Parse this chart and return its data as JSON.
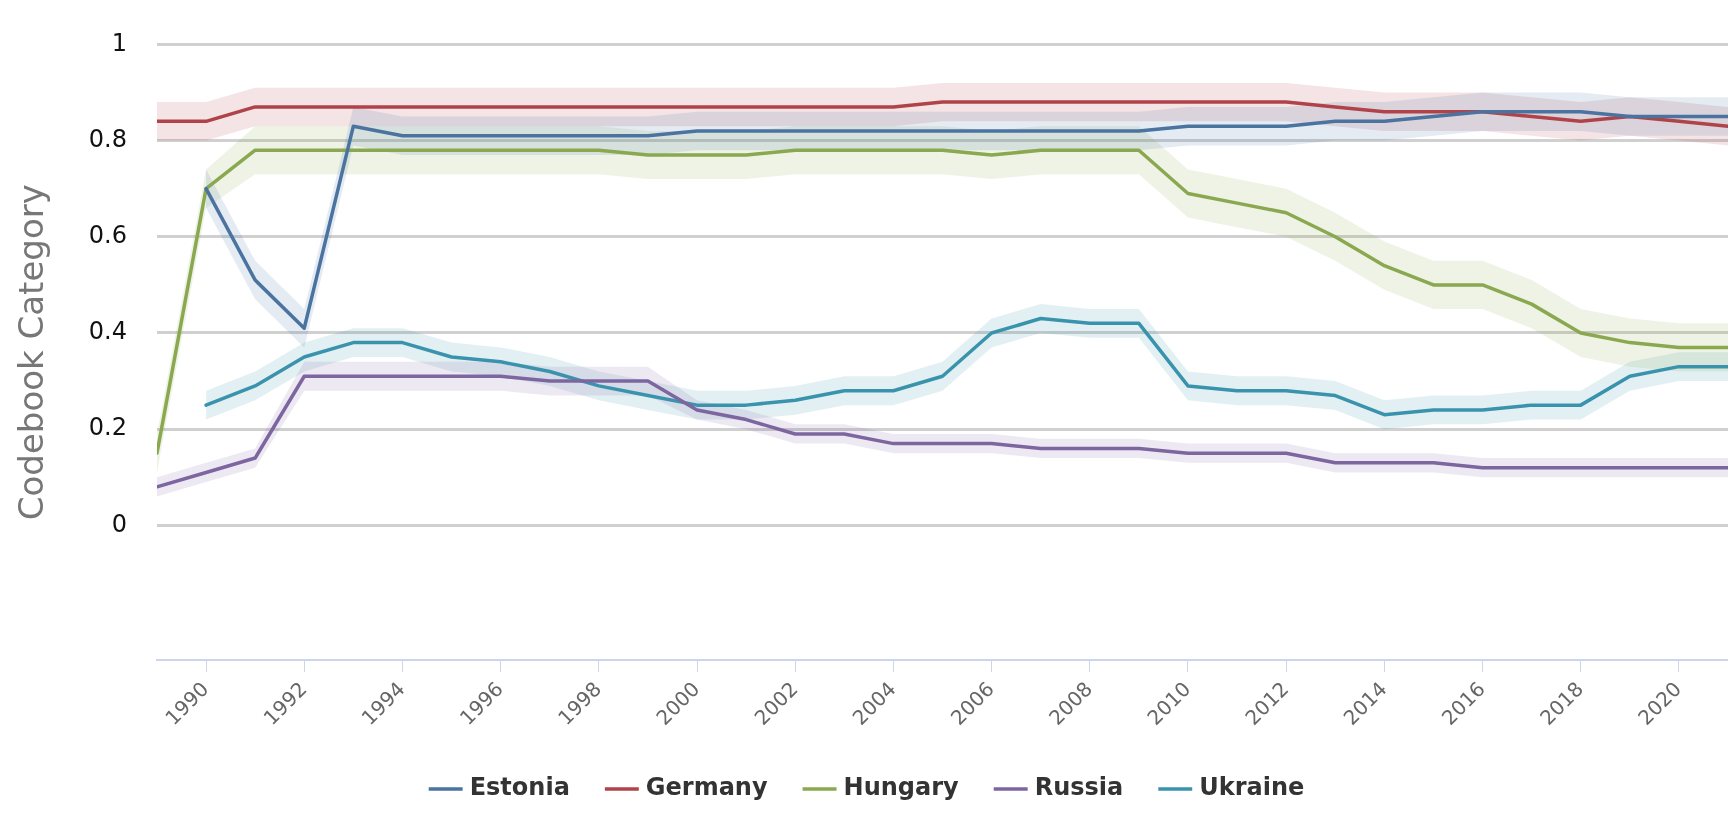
{
  "chart_data": {
    "type": "line",
    "ylabel": "Codebook Category",
    "x": [
      1989,
      1990,
      1991,
      1992,
      1993,
      1994,
      1995,
      1996,
      1997,
      1998,
      1999,
      2000,
      2001,
      2002,
      2003,
      2004,
      2005,
      2006,
      2007,
      2008,
      2009,
      2010,
      2011,
      2012,
      2013,
      2014,
      2015,
      2016,
      2017,
      2018,
      2019,
      2020,
      2021
    ],
    "xlim": [
      1989,
      2021
    ],
    "xticks": [
      1990,
      1992,
      1994,
      1996,
      1998,
      2000,
      2002,
      2004,
      2006,
      2008,
      2010,
      2012,
      2014,
      2016,
      2018,
      2020
    ],
    "ylim": [
      -0.28,
      1
    ],
    "yticks": [
      0,
      0.2,
      0.4,
      0.6,
      0.8,
      1
    ],
    "grid": "y",
    "legend": "bottom",
    "marker": "none",
    "line_style": "solid",
    "series": [
      {
        "name": "Estonia",
        "color": "#4a73a0",
        "values": [
          null,
          0.7,
          0.51,
          0.41,
          0.83,
          0.81,
          0.81,
          0.81,
          0.81,
          0.81,
          0.81,
          0.82,
          0.82,
          0.82,
          0.82,
          0.82,
          0.82,
          0.82,
          0.82,
          0.82,
          0.82,
          0.83,
          0.83,
          0.83,
          0.84,
          0.84,
          0.85,
          0.86,
          0.86,
          0.86,
          0.85,
          0.85,
          0.85
        ],
        "lower": [
          null,
          0.66,
          0.47,
          0.37,
          0.79,
          0.77,
          0.77,
          0.77,
          0.77,
          0.77,
          0.77,
          0.78,
          0.78,
          0.78,
          0.78,
          0.78,
          0.78,
          0.78,
          0.78,
          0.78,
          0.78,
          0.79,
          0.79,
          0.79,
          0.8,
          0.8,
          0.81,
          0.82,
          0.82,
          0.82,
          0.81,
          0.81,
          0.81
        ],
        "upper": [
          null,
          0.74,
          0.55,
          0.45,
          0.87,
          0.85,
          0.85,
          0.85,
          0.85,
          0.85,
          0.85,
          0.86,
          0.86,
          0.86,
          0.86,
          0.86,
          0.86,
          0.86,
          0.86,
          0.86,
          0.86,
          0.87,
          0.87,
          0.87,
          0.88,
          0.88,
          0.89,
          0.9,
          0.9,
          0.9,
          0.89,
          0.89,
          0.89
        ]
      },
      {
        "name": "Germany",
        "color": "#b0434a",
        "values": [
          0.84,
          0.84,
          0.87,
          0.87,
          0.87,
          0.87,
          0.87,
          0.87,
          0.87,
          0.87,
          0.87,
          0.87,
          0.87,
          0.87,
          0.87,
          0.87,
          0.88,
          0.88,
          0.88,
          0.88,
          0.88,
          0.88,
          0.88,
          0.88,
          0.87,
          0.86,
          0.86,
          0.86,
          0.85,
          0.84,
          0.85,
          0.84,
          0.83
        ],
        "lower": [
          0.8,
          0.8,
          0.83,
          0.83,
          0.83,
          0.83,
          0.83,
          0.83,
          0.83,
          0.83,
          0.83,
          0.83,
          0.83,
          0.83,
          0.83,
          0.83,
          0.84,
          0.84,
          0.84,
          0.84,
          0.84,
          0.84,
          0.84,
          0.84,
          0.83,
          0.82,
          0.82,
          0.82,
          0.81,
          0.8,
          0.81,
          0.8,
          0.79
        ],
        "upper": [
          0.88,
          0.88,
          0.91,
          0.91,
          0.91,
          0.91,
          0.91,
          0.91,
          0.91,
          0.91,
          0.91,
          0.91,
          0.91,
          0.91,
          0.91,
          0.91,
          0.92,
          0.92,
          0.92,
          0.92,
          0.92,
          0.92,
          0.92,
          0.92,
          0.91,
          0.9,
          0.9,
          0.9,
          0.89,
          0.88,
          0.89,
          0.88,
          0.87
        ]
      },
      {
        "name": "Hungary",
        "color": "#8aa84f",
        "values": [
          0.15,
          0.7,
          0.78,
          0.78,
          0.78,
          0.78,
          0.78,
          0.78,
          0.78,
          0.78,
          0.77,
          0.77,
          0.77,
          0.78,
          0.78,
          0.78,
          0.78,
          0.77,
          0.78,
          0.78,
          0.78,
          0.69,
          0.67,
          0.65,
          0.6,
          0.54,
          0.5,
          0.5,
          0.46,
          0.4,
          0.38,
          0.37,
          0.37
        ],
        "lower": [
          0.11,
          0.66,
          0.73,
          0.73,
          0.73,
          0.73,
          0.73,
          0.73,
          0.73,
          0.73,
          0.72,
          0.72,
          0.72,
          0.73,
          0.73,
          0.73,
          0.73,
          0.72,
          0.73,
          0.73,
          0.73,
          0.64,
          0.62,
          0.6,
          0.55,
          0.49,
          0.45,
          0.45,
          0.41,
          0.35,
          0.33,
          0.32,
          0.32
        ],
        "upper": [
          0.19,
          0.74,
          0.83,
          0.83,
          0.83,
          0.83,
          0.83,
          0.83,
          0.83,
          0.83,
          0.82,
          0.82,
          0.82,
          0.83,
          0.83,
          0.83,
          0.83,
          0.82,
          0.83,
          0.83,
          0.83,
          0.74,
          0.72,
          0.7,
          0.65,
          0.59,
          0.55,
          0.55,
          0.51,
          0.45,
          0.43,
          0.42,
          0.42
        ]
      },
      {
        "name": "Russia",
        "color": "#7d65a0",
        "values": [
          0.08,
          0.11,
          0.14,
          0.31,
          0.31,
          0.31,
          0.31,
          0.31,
          0.3,
          0.3,
          0.3,
          0.24,
          0.22,
          0.19,
          0.19,
          0.17,
          0.17,
          0.17,
          0.16,
          0.16,
          0.16,
          0.15,
          0.15,
          0.15,
          0.13,
          0.13,
          0.13,
          0.12,
          0.12,
          0.12,
          0.12,
          0.12,
          0.12
        ],
        "lower": [
          0.06,
          0.09,
          0.12,
          0.28,
          0.28,
          0.28,
          0.28,
          0.28,
          0.27,
          0.27,
          0.27,
          0.22,
          0.2,
          0.17,
          0.17,
          0.15,
          0.15,
          0.15,
          0.14,
          0.14,
          0.14,
          0.13,
          0.13,
          0.13,
          0.11,
          0.11,
          0.11,
          0.1,
          0.1,
          0.1,
          0.1,
          0.1,
          0.1
        ],
        "upper": [
          0.1,
          0.13,
          0.16,
          0.34,
          0.34,
          0.34,
          0.34,
          0.34,
          0.33,
          0.33,
          0.33,
          0.26,
          0.24,
          0.21,
          0.21,
          0.19,
          0.19,
          0.19,
          0.18,
          0.18,
          0.18,
          0.17,
          0.17,
          0.17,
          0.15,
          0.15,
          0.15,
          0.14,
          0.14,
          0.14,
          0.14,
          0.14,
          0.14
        ]
      },
      {
        "name": "Ukraine",
        "color": "#3a93ac",
        "values": [
          null,
          0.25,
          0.29,
          0.35,
          0.38,
          0.38,
          0.35,
          0.34,
          0.32,
          0.29,
          0.27,
          0.25,
          0.25,
          0.26,
          0.28,
          0.28,
          0.31,
          0.4,
          0.43,
          0.42,
          0.42,
          0.29,
          0.28,
          0.28,
          0.27,
          0.23,
          0.24,
          0.24,
          0.25,
          0.25,
          0.31,
          0.33,
          0.33
        ],
        "lower": [
          null,
          0.22,
          0.26,
          0.32,
          0.35,
          0.35,
          0.32,
          0.31,
          0.29,
          0.26,
          0.24,
          0.22,
          0.22,
          0.23,
          0.25,
          0.25,
          0.28,
          0.37,
          0.4,
          0.39,
          0.39,
          0.26,
          0.25,
          0.25,
          0.24,
          0.2,
          0.21,
          0.21,
          0.22,
          0.22,
          0.28,
          0.3,
          0.3
        ],
        "upper": [
          null,
          0.28,
          0.32,
          0.38,
          0.41,
          0.41,
          0.38,
          0.37,
          0.35,
          0.32,
          0.3,
          0.28,
          0.28,
          0.29,
          0.31,
          0.31,
          0.34,
          0.43,
          0.46,
          0.45,
          0.45,
          0.32,
          0.31,
          0.31,
          0.3,
          0.26,
          0.27,
          0.27,
          0.28,
          0.28,
          0.34,
          0.36,
          0.36
        ]
      }
    ]
  }
}
